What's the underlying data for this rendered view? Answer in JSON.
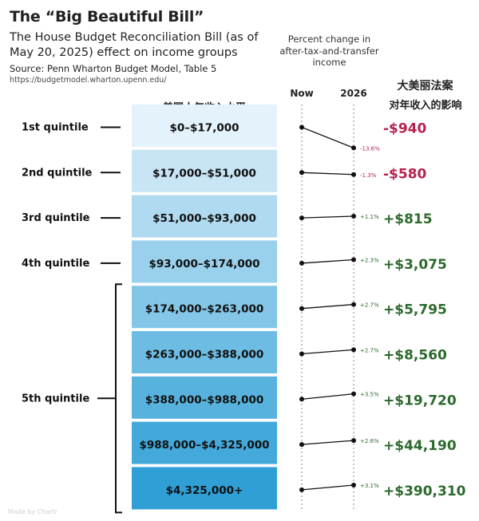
{
  "header": {
    "title": "The “Big Beautiful Bill”",
    "subtitle": "The House Budget Reconciliation Bill (as of May 20, 2025) effect on income groups",
    "source": "Source: Penn Wharton Budget Model, Table 5",
    "url": "https://budgetmodel.wharton.upenn.edu/",
    "pct_header": "Percent change in after-tax-and-transfer income",
    "cn_title": "大美丽法案",
    "cn_subtitle": "对年收入的影响",
    "cn_income_header": "美国人年收入水平"
  },
  "colors": {
    "negative": "#b5234f",
    "positive": "#2d6a2d",
    "band_light": "#e3f2fb",
    "band_dark": "#2f9fd6"
  },
  "chart_data": {
    "type": "slope",
    "x": [
      "Now",
      "2026"
    ],
    "series_label": "Percent change in after-tax-and-transfer income",
    "groups": [
      {
        "quintile": "1st quintile",
        "income": "$0–$17,000",
        "pct": -13.6,
        "pct_label": "-13.6%",
        "dollar": "-$940"
      },
      {
        "quintile": "2nd quintile",
        "income": "$17,000–$51,000",
        "pct": -1.3,
        "pct_label": "-1.3%",
        "dollar": "-$580"
      },
      {
        "quintile": "3rd quintile",
        "income": "$51,000–$93,000",
        "pct": 1.1,
        "pct_label": "+1.1%",
        "dollar": "+$815"
      },
      {
        "quintile": "4th quintile",
        "income": "$93,000–$174,000",
        "pct": 2.3,
        "pct_label": "+2.3%",
        "dollar": "+$3,075"
      },
      {
        "quintile": "5th quintile",
        "income": "$174,000–$263,000",
        "pct": 2.7,
        "pct_label": "+2.7%",
        "dollar": "+$5,795"
      },
      {
        "quintile": "5th quintile",
        "income": "$263,000–$388,000",
        "pct": 2.7,
        "pct_label": "+2.7%",
        "dollar": "+$8,560"
      },
      {
        "quintile": "5th quintile",
        "income": "$388,000–$988,000",
        "pct": 3.5,
        "pct_label": "+3.5%",
        "dollar": "+$19,720"
      },
      {
        "quintile": "5th quintile",
        "income": "$988,000–$4,325,000",
        "pct": 2.6,
        "pct_label": "+2.6%",
        "dollar": "+$44,190"
      },
      {
        "quintile": "5th quintile",
        "income": "$4,325,000+",
        "pct": 3.1,
        "pct_label": "+3.1%",
        "dollar": "+$390,310"
      }
    ],
    "quintile_labels": [
      "1st quintile",
      "2nd quintile",
      "3rd quintile",
      "4th quintile",
      "5th quintile"
    ]
  },
  "watermark": "Made by Chartr"
}
